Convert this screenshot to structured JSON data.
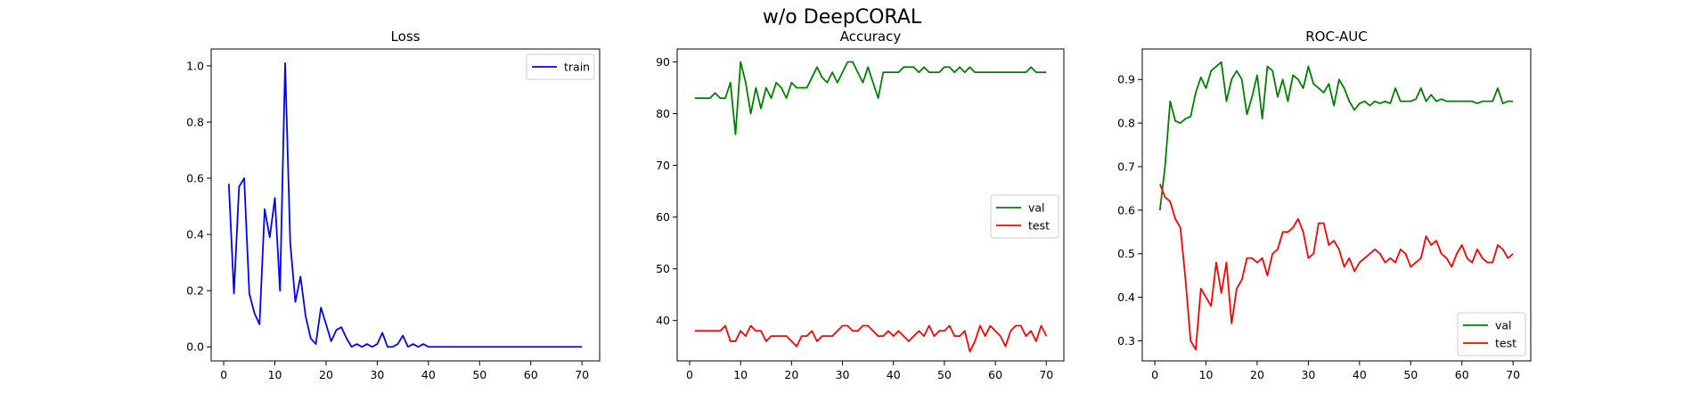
{
  "figure": {
    "title": "w/o DeepCORAL"
  },
  "chart_data": [
    {
      "type": "line",
      "title": "Loss",
      "xlabel": "",
      "ylabel": "",
      "xlim": [
        -2.45,
        73.45
      ],
      "ylim": [
        -0.05,
        1.06
      ],
      "xticks": [
        0,
        10,
        20,
        30,
        40,
        50,
        60,
        70
      ],
      "yticks": [
        0.0,
        0.2,
        0.4,
        0.6,
        0.8,
        1.0
      ],
      "ytick_labels": [
        "0.0",
        "0.2",
        "0.4",
        "0.6",
        "0.8",
        "1.0"
      ],
      "grid": false,
      "legend": "top-right",
      "series": [
        {
          "name": "train",
          "color": "#0000ff",
          "x": [
            1,
            2,
            3,
            4,
            5,
            6,
            7,
            8,
            9,
            10,
            11,
            12,
            13,
            14,
            15,
            16,
            17,
            18,
            19,
            20,
            21,
            22,
            23,
            24,
            25,
            26,
            27,
            28,
            29,
            30,
            31,
            32,
            33,
            34,
            35,
            36,
            37,
            38,
            39,
            40,
            41,
            42,
            43,
            44,
            45,
            46,
            47,
            48,
            49,
            50,
            51,
            52,
            53,
            54,
            55,
            56,
            57,
            58,
            59,
            60,
            61,
            62,
            63,
            64,
            65,
            66,
            67,
            68,
            69,
            70
          ],
          "values": [
            0.58,
            0.19,
            0.57,
            0.6,
            0.19,
            0.12,
            0.08,
            0.49,
            0.39,
            0.53,
            0.2,
            1.01,
            0.37,
            0.16,
            0.25,
            0.11,
            0.03,
            0.01,
            0.14,
            0.08,
            0.02,
            0.06,
            0.07,
            0.03,
            0.0,
            0.01,
            0.0,
            0.01,
            0.0,
            0.01,
            0.05,
            0.0,
            0.0,
            0.01,
            0.04,
            0.0,
            0.01,
            0.0,
            0.01,
            0.0,
            0.0,
            0.0,
            0.0,
            0.0,
            0.0,
            0.0,
            0.0,
            0.0,
            0.0,
            0.0,
            0.0,
            0.0,
            0.0,
            0.0,
            0.0,
            0.0,
            0.0,
            0.0,
            0.0,
            0.0,
            0.0,
            0.0,
            0.0,
            0.0,
            0.0,
            0.0,
            0.0,
            0.0,
            0.0,
            0.0
          ]
        }
      ]
    },
    {
      "type": "line",
      "title": "Accuracy",
      "xlabel": "",
      "ylabel": "",
      "xlim": [
        -2.45,
        73.45
      ],
      "ylim": [
        32.2,
        92.5
      ],
      "xticks": [
        0,
        10,
        20,
        30,
        40,
        50,
        60,
        70
      ],
      "yticks": [
        40,
        50,
        60,
        70,
        80,
        90
      ],
      "ytick_labels": [
        "40",
        "50",
        "60",
        "70",
        "80",
        "90"
      ],
      "grid": false,
      "legend": "center-right",
      "series": [
        {
          "name": "val",
          "color": "#008000",
          "x": [
            1,
            2,
            3,
            4,
            5,
            6,
            7,
            8,
            9,
            10,
            11,
            12,
            13,
            14,
            15,
            16,
            17,
            18,
            19,
            20,
            21,
            22,
            23,
            24,
            25,
            26,
            27,
            28,
            29,
            30,
            31,
            32,
            33,
            34,
            35,
            36,
            37,
            38,
            39,
            40,
            41,
            42,
            43,
            44,
            45,
            46,
            47,
            48,
            49,
            50,
            51,
            52,
            53,
            54,
            55,
            56,
            57,
            58,
            59,
            60,
            61,
            62,
            63,
            64,
            65,
            66,
            67,
            68,
            69,
            70
          ],
          "values": [
            83,
            83,
            83,
            83,
            84,
            83,
            83,
            86,
            76,
            90,
            86,
            80,
            85,
            81,
            85,
            83,
            86,
            85,
            83,
            86,
            85,
            85,
            85,
            87,
            89,
            87,
            86,
            88,
            86,
            88,
            90,
            90,
            88,
            86,
            89,
            86,
            83,
            88,
            88,
            88,
            88,
            89,
            89,
            89,
            88,
            89,
            88,
            88,
            88,
            89,
            89,
            88,
            89,
            88,
            89,
            88,
            88,
            88,
            88,
            88,
            88,
            88,
            88,
            88,
            88,
            88,
            89,
            88,
            88,
            88
          ]
        },
        {
          "name": "test",
          "color": "#ff0000",
          "x": [
            1,
            2,
            3,
            4,
            5,
            6,
            7,
            8,
            9,
            10,
            11,
            12,
            13,
            14,
            15,
            16,
            17,
            18,
            19,
            20,
            21,
            22,
            23,
            24,
            25,
            26,
            27,
            28,
            29,
            30,
            31,
            32,
            33,
            34,
            35,
            36,
            37,
            38,
            39,
            40,
            41,
            42,
            43,
            44,
            45,
            46,
            47,
            48,
            49,
            50,
            51,
            52,
            53,
            54,
            55,
            56,
            57,
            58,
            59,
            60,
            61,
            62,
            63,
            64,
            65,
            66,
            67,
            68,
            69,
            70
          ],
          "values": [
            38,
            38,
            38,
            38,
            38,
            38,
            39,
            36,
            36,
            38,
            37,
            39,
            38,
            38,
            36,
            37,
            37,
            37,
            37,
            36,
            35,
            37,
            37,
            38,
            36,
            37,
            37,
            37,
            38,
            39,
            39,
            38,
            38,
            39,
            39,
            38,
            37,
            37,
            38,
            37,
            38,
            37,
            36,
            37,
            38,
            37,
            39,
            37,
            38,
            38,
            39,
            37,
            37,
            38,
            34,
            36,
            39,
            37,
            39,
            38,
            37,
            35,
            38,
            39,
            39,
            37,
            38,
            36,
            39,
            37
          ]
        }
      ]
    },
    {
      "type": "line",
      "title": "ROC-AUC",
      "xlabel": "",
      "ylabel": "",
      "xlim": [
        -2.45,
        73.45
      ],
      "ylim": [
        0.254,
        0.97
      ],
      "xticks": [
        0,
        10,
        20,
        30,
        40,
        50,
        60,
        70
      ],
      "yticks": [
        0.3,
        0.4,
        0.5,
        0.6,
        0.7,
        0.8,
        0.9
      ],
      "ytick_labels": [
        "0.3",
        "0.4",
        "0.5",
        "0.6",
        "0.7",
        "0.8",
        "0.9"
      ],
      "grid": false,
      "legend": "bottom-right",
      "series": [
        {
          "name": "val",
          "color": "#008000",
          "x": [
            1,
            2,
            3,
            4,
            5,
            6,
            7,
            8,
            9,
            10,
            11,
            12,
            13,
            14,
            15,
            16,
            17,
            18,
            19,
            20,
            21,
            22,
            23,
            24,
            25,
            26,
            27,
            28,
            29,
            30,
            31,
            32,
            33,
            34,
            35,
            36,
            37,
            38,
            39,
            40,
            41,
            42,
            43,
            44,
            45,
            46,
            47,
            48,
            49,
            50,
            51,
            52,
            53,
            54,
            55,
            56,
            57,
            58,
            59,
            60,
            61,
            62,
            63,
            64,
            65,
            66,
            67,
            68,
            69,
            70
          ],
          "values": [
            0.6,
            0.7,
            0.85,
            0.805,
            0.8,
            0.81,
            0.815,
            0.87,
            0.905,
            0.88,
            0.92,
            0.93,
            0.94,
            0.85,
            0.9,
            0.92,
            0.9,
            0.82,
            0.86,
            0.91,
            0.81,
            0.93,
            0.92,
            0.86,
            0.9,
            0.85,
            0.91,
            0.9,
            0.88,
            0.93,
            0.89,
            0.88,
            0.87,
            0.89,
            0.84,
            0.9,
            0.88,
            0.85,
            0.83,
            0.845,
            0.85,
            0.84,
            0.85,
            0.845,
            0.85,
            0.845,
            0.88,
            0.85,
            0.85,
            0.85,
            0.855,
            0.88,
            0.85,
            0.865,
            0.85,
            0.855,
            0.85,
            0.85,
            0.85,
            0.85,
            0.85,
            0.85,
            0.845,
            0.85,
            0.85,
            0.85,
            0.88,
            0.845,
            0.85,
            0.85
          ]
        },
        {
          "name": "test",
          "color": "#ff0000",
          "x": [
            1,
            2,
            3,
            4,
            5,
            6,
            7,
            8,
            9,
            10,
            11,
            12,
            13,
            14,
            15,
            16,
            17,
            18,
            19,
            20,
            21,
            22,
            23,
            24,
            25,
            26,
            27,
            28,
            29,
            30,
            31,
            32,
            33,
            34,
            35,
            36,
            37,
            38,
            39,
            40,
            41,
            42,
            43,
            44,
            45,
            46,
            47,
            48,
            49,
            50,
            51,
            52,
            53,
            54,
            55,
            56,
            57,
            58,
            59,
            60,
            61,
            62,
            63,
            64,
            65,
            66,
            67,
            68,
            69,
            70
          ],
          "values": [
            0.66,
            0.63,
            0.62,
            0.58,
            0.56,
            0.44,
            0.3,
            0.28,
            0.42,
            0.4,
            0.38,
            0.48,
            0.41,
            0.48,
            0.34,
            0.42,
            0.44,
            0.49,
            0.49,
            0.48,
            0.49,
            0.45,
            0.5,
            0.51,
            0.55,
            0.55,
            0.56,
            0.58,
            0.55,
            0.49,
            0.5,
            0.57,
            0.57,
            0.52,
            0.53,
            0.51,
            0.47,
            0.49,
            0.46,
            0.48,
            0.49,
            0.5,
            0.51,
            0.5,
            0.48,
            0.49,
            0.48,
            0.51,
            0.5,
            0.47,
            0.48,
            0.49,
            0.54,
            0.52,
            0.53,
            0.5,
            0.49,
            0.47,
            0.5,
            0.52,
            0.49,
            0.48,
            0.51,
            0.49,
            0.48,
            0.48,
            0.52,
            0.51,
            0.49,
            0.5
          ]
        }
      ]
    }
  ]
}
